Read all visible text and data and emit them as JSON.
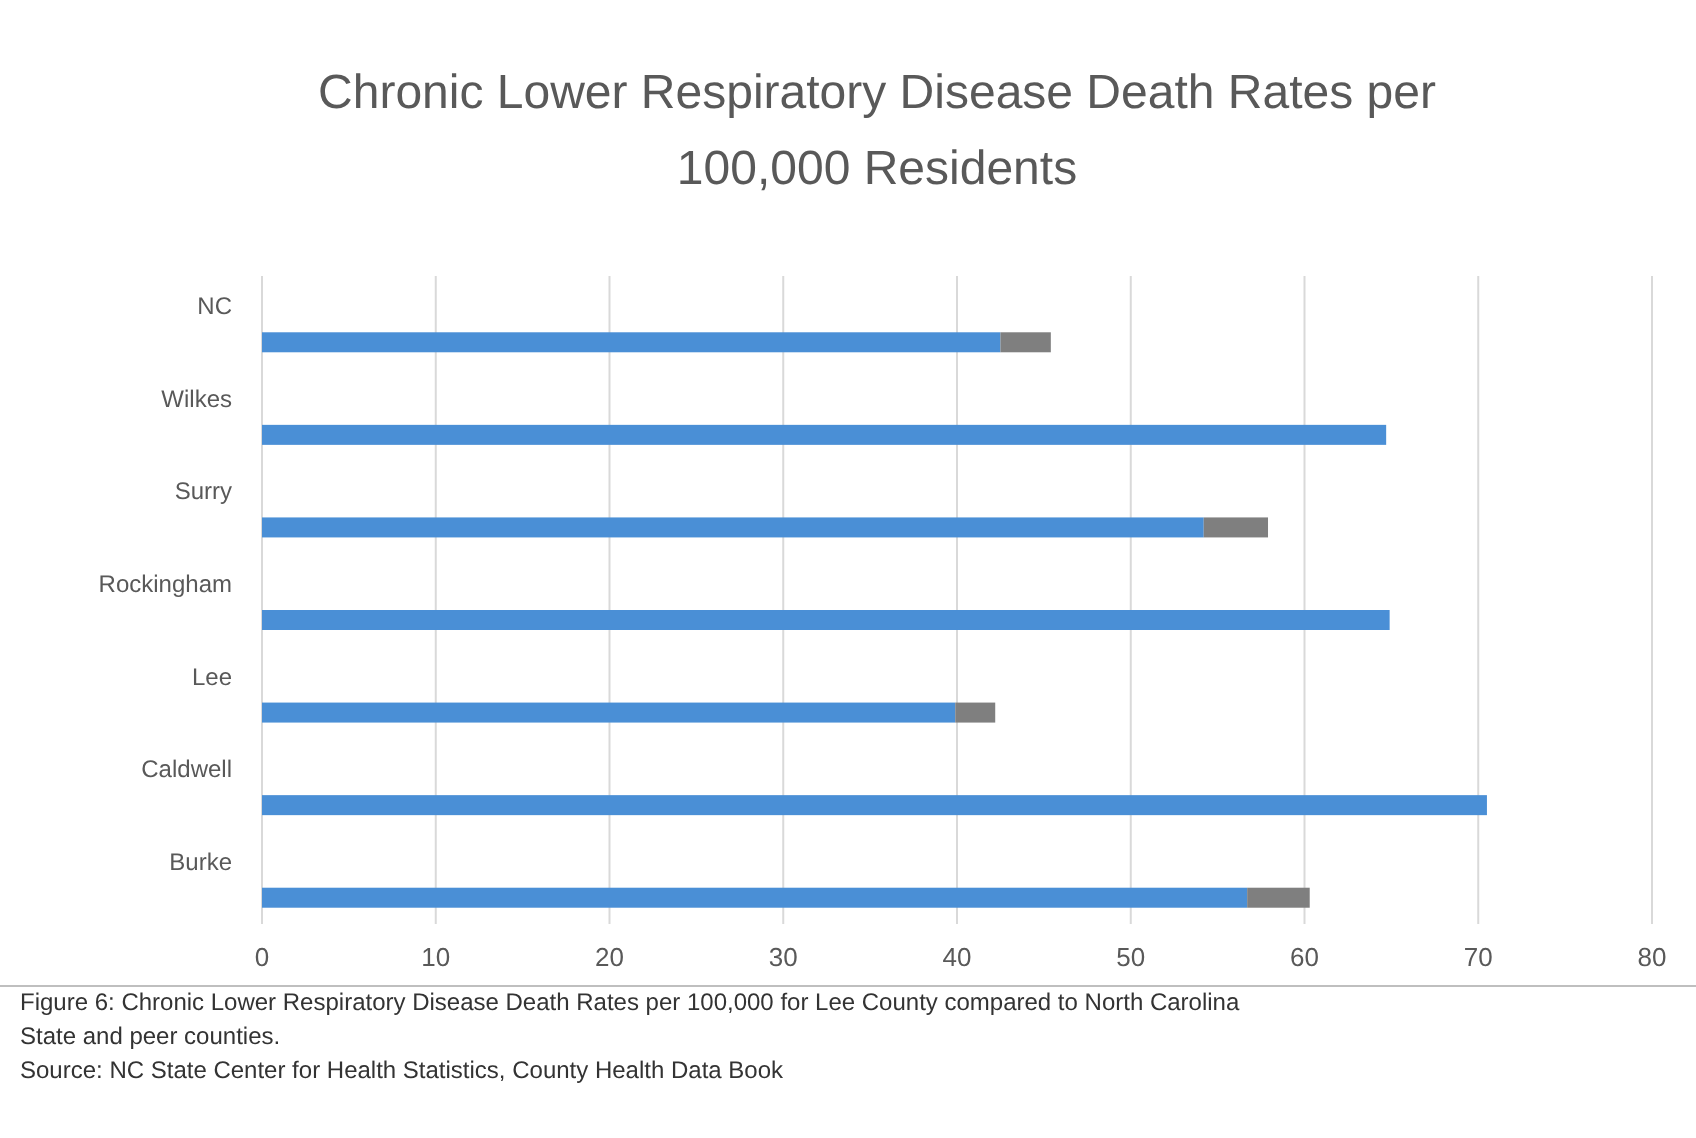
{
  "chart_data": {
    "type": "bar",
    "orientation": "horizontal",
    "stacked": true,
    "title": "Chronic Lower Respiratory Disease Death Rates per 100,000 Residents",
    "categories": [
      "NC",
      "Wilkes",
      "Surry",
      "Rockingham",
      "Lee",
      "Caldwell",
      "Burke"
    ],
    "series": [
      {
        "color": "#4a8fd6",
        "values": [
          42.5,
          64.7,
          54.2,
          64.9,
          39.9,
          70.5,
          56.7
        ]
      },
      {
        "color": "#7f7f7f",
        "values": [
          2.9,
          null,
          3.7,
          null,
          2.3,
          null,
          3.6
        ]
      }
    ],
    "xlim": [
      0,
      80
    ],
    "xticks": [
      0,
      10,
      20,
      30,
      40,
      50,
      60,
      70,
      80
    ],
    "grid": "x",
    "annotations": [
      "Figure 6: Chronic Lower Respiratory Disease Death Rates per 100,000 for Lee County compared to North Carolina State and peer counties.",
      "Source: NC State Center for Health Statistics, County Health Data Book"
    ]
  }
}
